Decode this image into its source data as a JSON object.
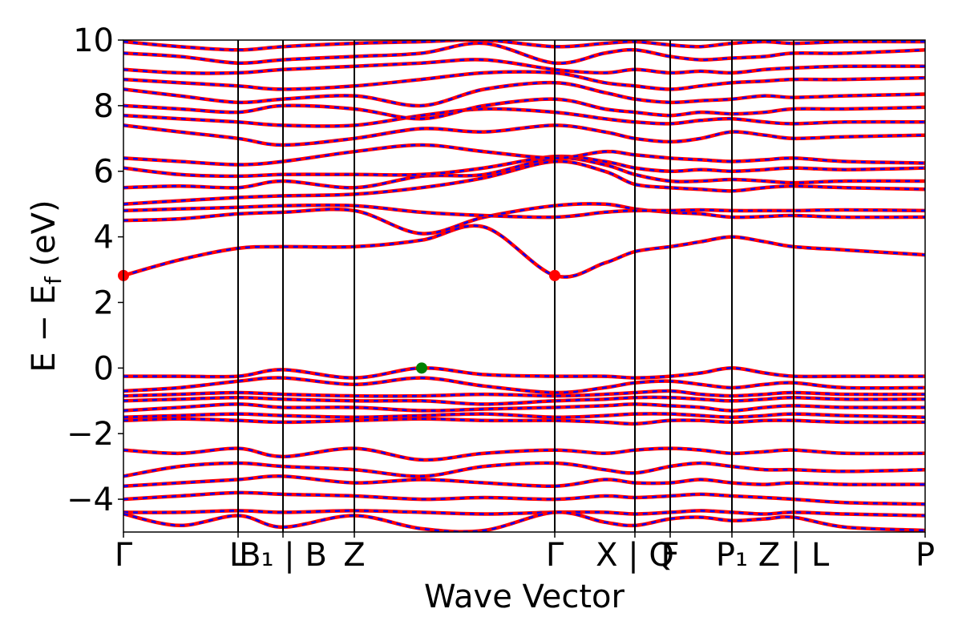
{
  "chart_data": {
    "type": "line",
    "title": "",
    "xlabel": "Wave Vector",
    "ylabel": "E − E_f (eV)",
    "ylabel_parts": {
      "main": "E − E",
      "sub": "f",
      "tail": " (eV)"
    },
    "ylim": [
      -5,
      10
    ],
    "yticks": [
      -4,
      -2,
      0,
      2,
      4,
      6,
      8,
      10
    ],
    "ytick_labels": [
      "−4",
      "−2",
      "0",
      "2",
      "4",
      "6",
      "8",
      "10"
    ],
    "grid": false,
    "legend": "none",
    "kpath": {
      "xlim": [
        0,
        1
      ],
      "positions": [
        0,
        0.143,
        0.199,
        0.288,
        0.538,
        0.638,
        0.682,
        0.759,
        0.836,
        1.0
      ],
      "labels": [
        "Γ",
        "L",
        "B₁ | B",
        "Z",
        "Γ",
        "X | Q",
        "F",
        "P₁",
        "Z | L",
        "P"
      ]
    },
    "colors": {
      "series_solid": "#ff0000",
      "series_dashed": "#0000ff",
      "cbm_marker": "#ff0000",
      "vbm_marker": "#008000"
    },
    "markers": [
      {
        "name": "CBM",
        "x": 0.0,
        "y": 2.82
      },
      {
        "name": "CBM",
        "x": 0.538,
        "y": 2.82
      },
      {
        "name": "VBM",
        "x": 0.372,
        "y": 0.0
      }
    ],
    "bands": [
      {
        "x": [
          0,
          0.07,
          0.143,
          0.199,
          0.288,
          0.372,
          0.45,
          0.538,
          0.6,
          0.638,
          0.682,
          0.72,
          0.759,
          0.8,
          0.836,
          0.9,
          1.0
        ],
        "y": [
          2.82,
          3.3,
          3.65,
          3.7,
          3.7,
          3.9,
          4.3,
          2.82,
          3.2,
          3.55,
          3.7,
          3.85,
          4.0,
          3.85,
          3.7,
          3.6,
          3.45
        ]
      },
      {
        "x": [
          0,
          0.07,
          0.143,
          0.199,
          0.288,
          0.372,
          0.45,
          0.538,
          0.6,
          0.638,
          0.682,
          0.72,
          0.759,
          0.8,
          0.836,
          0.9,
          1.0
        ],
        "y": [
          4.5,
          4.55,
          4.7,
          4.75,
          4.8,
          4.1,
          4.6,
          4.95,
          5.0,
          4.85,
          4.75,
          4.7,
          4.6,
          4.62,
          4.65,
          4.6,
          4.6
        ]
      },
      {
        "x": [
          0,
          0.07,
          0.143,
          0.199,
          0.288,
          0.372,
          0.45,
          0.538,
          0.6,
          0.638,
          0.682,
          0.72,
          0.759,
          0.8,
          0.836,
          0.9,
          1.0
        ],
        "y": [
          4.8,
          4.85,
          4.9,
          4.95,
          4.95,
          4.75,
          4.65,
          4.6,
          4.75,
          4.8,
          4.8,
          4.82,
          4.8,
          4.8,
          4.8,
          4.82,
          4.8
        ]
      },
      {
        "x": [
          0,
          0.07,
          0.143,
          0.199,
          0.288,
          0.372,
          0.45,
          0.538,
          0.6,
          0.638,
          0.682,
          0.72,
          0.759,
          0.8,
          0.836,
          0.9,
          1.0
        ],
        "y": [
          5.0,
          5.1,
          5.2,
          5.25,
          5.3,
          5.5,
          5.8,
          6.3,
          6.0,
          5.6,
          5.5,
          5.45,
          5.4,
          5.5,
          5.55,
          5.5,
          5.45
        ]
      },
      {
        "x": [
          0,
          0.07,
          0.143,
          0.199,
          0.288,
          0.372,
          0.45,
          0.538,
          0.6,
          0.638,
          0.682,
          0.72,
          0.759,
          0.8,
          0.836,
          0.9,
          1.0
        ],
        "y": [
          5.5,
          5.55,
          5.5,
          5.7,
          5.5,
          5.85,
          5.9,
          6.4,
          6.2,
          5.9,
          5.7,
          5.7,
          5.75,
          5.7,
          5.65,
          5.7,
          5.7
        ]
      },
      {
        "x": [
          0,
          0.07,
          0.143,
          0.199,
          0.288,
          0.372,
          0.45,
          0.538,
          0.6,
          0.638,
          0.682,
          0.72,
          0.759,
          0.8,
          0.836,
          0.9,
          1.0
        ],
        "y": [
          6.1,
          5.9,
          5.85,
          5.9,
          5.9,
          5.9,
          6.1,
          6.45,
          6.3,
          6.1,
          6.0,
          6.05,
          6.0,
          6.05,
          6.1,
          6.05,
          6.1
        ]
      },
      {
        "x": [
          0,
          0.07,
          0.143,
          0.199,
          0.288,
          0.372,
          0.45,
          0.538,
          0.6,
          0.638,
          0.682,
          0.72,
          0.759,
          0.8,
          0.836,
          0.9,
          1.0
        ],
        "y": [
          6.4,
          6.3,
          6.2,
          6.3,
          6.6,
          6.8,
          6.6,
          6.4,
          6.6,
          6.5,
          6.4,
          6.35,
          6.3,
          6.35,
          6.4,
          6.3,
          6.25
        ]
      },
      {
        "x": [
          0,
          0.07,
          0.143,
          0.199,
          0.288,
          0.372,
          0.45,
          0.538,
          0.6,
          0.638,
          0.682,
          0.72,
          0.759,
          0.8,
          0.836,
          0.9,
          1.0
        ],
        "y": [
          7.4,
          7.2,
          7.0,
          6.8,
          7.0,
          7.3,
          7.2,
          7.4,
          7.2,
          7.0,
          6.9,
          7.0,
          7.2,
          7.1,
          7.0,
          7.05,
          7.1
        ]
      },
      {
        "x": [
          0,
          0.07,
          0.143,
          0.199,
          0.288,
          0.372,
          0.45,
          0.538,
          0.6,
          0.638,
          0.682,
          0.72,
          0.759,
          0.8,
          0.836,
          0.9,
          1.0
        ],
        "y": [
          7.7,
          7.6,
          7.5,
          7.4,
          7.4,
          7.7,
          7.9,
          7.8,
          7.6,
          7.5,
          7.45,
          7.55,
          7.6,
          7.5,
          7.45,
          7.5,
          7.5
        ]
      },
      {
        "x": [
          0,
          0.07,
          0.143,
          0.199,
          0.288,
          0.372,
          0.45,
          0.538,
          0.6,
          0.638,
          0.682,
          0.72,
          0.759,
          0.8,
          0.836,
          0.9,
          1.0
        ],
        "y": [
          8.0,
          7.9,
          7.8,
          8.0,
          7.9,
          7.6,
          8.0,
          8.2,
          7.9,
          7.8,
          7.7,
          7.8,
          7.75,
          7.8,
          7.9,
          7.9,
          7.95
        ]
      },
      {
        "x": [
          0,
          0.07,
          0.143,
          0.199,
          0.288,
          0.372,
          0.45,
          0.538,
          0.6,
          0.638,
          0.682,
          0.72,
          0.759,
          0.8,
          0.836,
          0.9,
          1.0
        ],
        "y": [
          8.5,
          8.3,
          8.1,
          8.2,
          8.3,
          8.0,
          8.5,
          8.7,
          8.4,
          8.2,
          8.1,
          8.15,
          8.2,
          8.3,
          8.25,
          8.3,
          8.35
        ]
      },
      {
        "x": [
          0,
          0.07,
          0.143,
          0.199,
          0.288,
          0.372,
          0.45,
          0.538,
          0.6,
          0.638,
          0.682,
          0.72,
          0.759,
          0.8,
          0.836,
          0.9,
          1.0
        ],
        "y": [
          8.8,
          8.7,
          8.6,
          8.5,
          8.6,
          8.8,
          9.0,
          9.0,
          8.7,
          8.6,
          8.5,
          8.6,
          8.7,
          8.75,
          8.8,
          8.8,
          8.85
        ]
      },
      {
        "x": [
          0,
          0.07,
          0.143,
          0.199,
          0.288,
          0.372,
          0.45,
          0.538,
          0.6,
          0.638,
          0.682,
          0.72,
          0.759,
          0.8,
          0.836,
          0.9,
          1.0
        ],
        "y": [
          9.1,
          9.0,
          9.0,
          9.1,
          9.2,
          9.3,
          9.4,
          9.1,
          9.0,
          9.1,
          9.0,
          9.05,
          9.0,
          9.1,
          9.15,
          9.2,
          9.2
        ]
      },
      {
        "x": [
          0,
          0.07,
          0.143,
          0.199,
          0.288,
          0.372,
          0.45,
          0.538,
          0.6,
          0.638,
          0.682,
          0.72,
          0.759,
          0.8,
          0.836,
          0.9,
          1.0
        ],
        "y": [
          9.6,
          9.5,
          9.3,
          9.4,
          9.5,
          9.6,
          9.9,
          9.3,
          9.6,
          9.7,
          9.5,
          9.4,
          9.45,
          9.5,
          9.6,
          9.6,
          9.7
        ]
      },
      {
        "x": [
          0,
          0.07,
          0.143,
          0.199,
          0.288,
          0.372,
          0.45,
          0.538,
          0.6,
          0.638,
          0.682,
          0.72,
          0.759,
          0.8,
          0.836,
          0.9,
          1.0
        ],
        "y": [
          9.95,
          9.8,
          9.7,
          9.8,
          9.9,
          9.95,
          10.0,
          9.8,
          9.9,
          9.95,
          9.85,
          9.8,
          9.9,
          9.95,
          9.9,
          9.95,
          9.95
        ]
      },
      {
        "x": [
          0,
          0.07,
          0.143,
          0.199,
          0.288,
          0.372,
          0.45,
          0.538,
          0.6,
          0.638,
          0.682,
          0.72,
          0.759,
          0.8,
          0.836,
          0.9,
          1.0
        ],
        "y": [
          -0.25,
          -0.25,
          -0.25,
          -0.05,
          -0.3,
          0.0,
          -0.2,
          -0.25,
          -0.25,
          -0.3,
          -0.25,
          -0.15,
          0.0,
          -0.15,
          -0.25,
          -0.25,
          -0.25
        ]
      },
      {
        "x": [
          0,
          0.07,
          0.143,
          0.199,
          0.288,
          0.372,
          0.45,
          0.538,
          0.6,
          0.638,
          0.682,
          0.72,
          0.759,
          0.8,
          0.836,
          0.9,
          1.0
        ],
        "y": [
          -0.7,
          -0.6,
          -0.4,
          -0.3,
          -0.5,
          -0.3,
          -0.55,
          -0.75,
          -0.6,
          -0.45,
          -0.4,
          -0.5,
          -0.6,
          -0.5,
          -0.45,
          -0.6,
          -0.6
        ]
      },
      {
        "x": [
          0,
          0.07,
          0.143,
          0.199,
          0.288,
          0.372,
          0.45,
          0.538,
          0.6,
          0.638,
          0.682,
          0.72,
          0.759,
          0.8,
          0.836,
          0.9,
          1.0
        ],
        "y": [
          -0.85,
          -0.8,
          -0.75,
          -0.8,
          -0.85,
          -0.85,
          -0.8,
          -0.85,
          -0.8,
          -0.75,
          -0.7,
          -0.8,
          -0.85,
          -0.8,
          -0.75,
          -0.8,
          -0.8
        ]
      },
      {
        "x": [
          0,
          0.07,
          0.143,
          0.199,
          0.288,
          0.372,
          0.45,
          0.538,
          0.6,
          0.638,
          0.682,
          0.72,
          0.759,
          0.8,
          0.836,
          0.9,
          1.0
        ],
        "y": [
          -1.0,
          -0.95,
          -0.9,
          -0.95,
          -1.0,
          -1.0,
          -1.1,
          -1.0,
          -0.95,
          -0.9,
          -0.9,
          -0.95,
          -1.0,
          -0.95,
          -0.9,
          -0.95,
          -0.95
        ]
      },
      {
        "x": [
          0,
          0.07,
          0.143,
          0.199,
          0.288,
          0.372,
          0.45,
          0.538,
          0.6,
          0.638,
          0.682,
          0.72,
          0.759,
          0.8,
          0.836,
          0.9,
          1.0
        ],
        "y": [
          -1.3,
          -1.2,
          -1.1,
          -1.2,
          -1.2,
          -1.3,
          -1.25,
          -1.2,
          -1.15,
          -1.1,
          -1.15,
          -1.2,
          -1.3,
          -1.2,
          -1.15,
          -1.2,
          -1.2
        ]
      },
      {
        "x": [
          0,
          0.07,
          0.143,
          0.199,
          0.288,
          0.372,
          0.45,
          0.538,
          0.6,
          0.638,
          0.682,
          0.72,
          0.759,
          0.8,
          0.836,
          0.9,
          1.0
        ],
        "y": [
          -1.5,
          -1.45,
          -1.4,
          -1.45,
          -1.5,
          -1.45,
          -1.4,
          -1.5,
          -1.45,
          -1.4,
          -1.4,
          -1.45,
          -1.5,
          -1.45,
          -1.4,
          -1.45,
          -1.5
        ]
      },
      {
        "x": [
          0,
          0.07,
          0.143,
          0.199,
          0.288,
          0.372,
          0.45,
          0.538,
          0.6,
          0.638,
          0.682,
          0.72,
          0.759,
          0.8,
          0.836,
          0.9,
          1.0
        ],
        "y": [
          -1.6,
          -1.55,
          -1.6,
          -1.65,
          -1.6,
          -1.55,
          -1.6,
          -1.6,
          -1.65,
          -1.7,
          -1.6,
          -1.6,
          -1.65,
          -1.6,
          -1.6,
          -1.65,
          -1.65
        ]
      },
      {
        "x": [
          0,
          0.07,
          0.143,
          0.199,
          0.288,
          0.372,
          0.45,
          0.538,
          0.6,
          0.638,
          0.682,
          0.72,
          0.759,
          0.8,
          0.836,
          0.9,
          1.0
        ],
        "y": [
          -2.5,
          -2.6,
          -2.45,
          -2.7,
          -2.45,
          -2.8,
          -2.6,
          -2.5,
          -2.6,
          -2.5,
          -2.45,
          -2.5,
          -2.6,
          -2.55,
          -2.5,
          -2.6,
          -2.6
        ]
      },
      {
        "x": [
          0,
          0.07,
          0.143,
          0.199,
          0.288,
          0.372,
          0.45,
          0.538,
          0.6,
          0.638,
          0.682,
          0.72,
          0.759,
          0.8,
          0.836,
          0.9,
          1.0
        ],
        "y": [
          -3.3,
          -3.0,
          -2.9,
          -3.0,
          -3.1,
          -3.3,
          -3.0,
          -2.9,
          -3.1,
          -3.2,
          -3.0,
          -2.9,
          -3.0,
          -3.1,
          -3.1,
          -3.15,
          -3.1
        ]
      },
      {
        "x": [
          0,
          0.07,
          0.143,
          0.199,
          0.288,
          0.372,
          0.45,
          0.538,
          0.6,
          0.638,
          0.682,
          0.72,
          0.759,
          0.8,
          0.836,
          0.9,
          1.0
        ],
        "y": [
          -3.6,
          -3.5,
          -3.4,
          -3.3,
          -3.5,
          -3.4,
          -3.5,
          -3.6,
          -3.4,
          -3.5,
          -3.5,
          -3.4,
          -3.5,
          -3.55,
          -3.5,
          -3.55,
          -3.55
        ]
      },
      {
        "x": [
          0,
          0.07,
          0.143,
          0.199,
          0.288,
          0.372,
          0.45,
          0.538,
          0.6,
          0.638,
          0.682,
          0.72,
          0.759,
          0.8,
          0.836,
          0.9,
          1.0
        ],
        "y": [
          -4.0,
          -3.9,
          -3.8,
          -3.85,
          -3.9,
          -4.0,
          -3.95,
          -4.0,
          -3.9,
          -3.95,
          -3.9,
          -3.85,
          -3.9,
          -3.95,
          -4.0,
          -4.1,
          -4.15
        ]
      },
      {
        "x": [
          0,
          0.07,
          0.143,
          0.199,
          0.288,
          0.372,
          0.45,
          0.538,
          0.6,
          0.638,
          0.682,
          0.72,
          0.759,
          0.8,
          0.836,
          0.9,
          1.0
        ],
        "y": [
          -4.4,
          -4.4,
          -4.35,
          -4.4,
          -4.35,
          -4.4,
          -4.45,
          -4.4,
          -4.4,
          -4.45,
          -4.4,
          -4.35,
          -4.4,
          -4.45,
          -4.4,
          -4.45,
          -4.5
        ]
      },
      {
        "x": [
          0,
          0.07,
          0.143,
          0.199,
          0.288,
          0.372,
          0.45,
          0.538,
          0.6,
          0.638,
          0.682,
          0.72,
          0.759,
          0.8,
          0.836,
          0.9,
          1.0
        ],
        "y": [
          -4.45,
          -4.8,
          -4.5,
          -4.85,
          -4.5,
          -4.9,
          -4.95,
          -4.4,
          -4.7,
          -4.8,
          -4.6,
          -4.55,
          -4.65,
          -4.6,
          -4.55,
          -4.85,
          -4.95
        ]
      }
    ]
  }
}
